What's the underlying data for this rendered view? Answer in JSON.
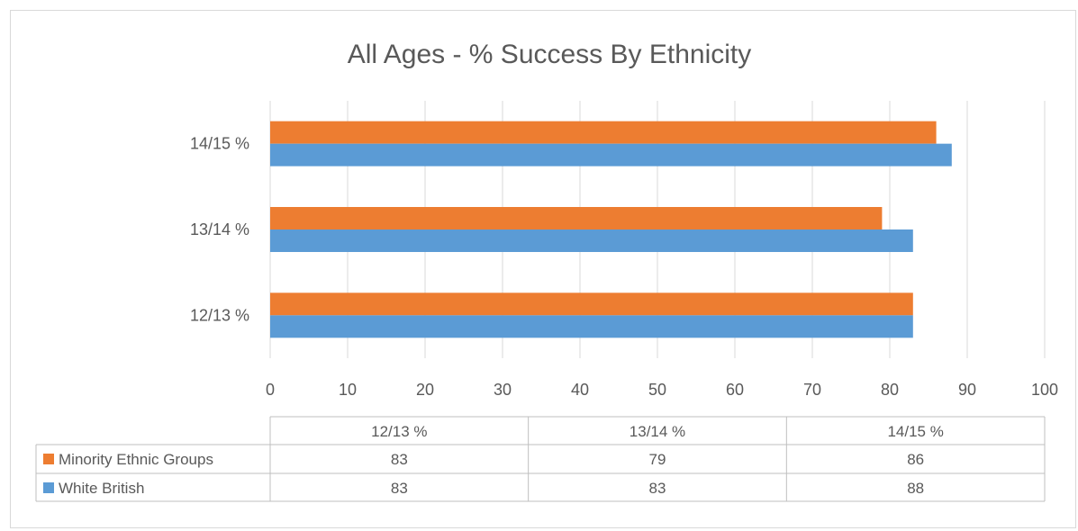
{
  "chart_data": {
    "type": "bar",
    "orientation": "horizontal",
    "title": "All Ages - % Success By Ethnicity",
    "categories": [
      "12/13 %",
      "13/14 %",
      "14/15 %"
    ],
    "series": [
      {
        "name": "Minority Ethnic Groups",
        "color": "#ed7d31",
        "values": [
          83,
          79,
          86
        ]
      },
      {
        "name": "White British",
        "color": "#5b9bd5",
        "values": [
          83,
          83,
          88
        ]
      }
    ],
    "xticks": [
      "0",
      "10",
      "20",
      "30",
      "40",
      "50",
      "60",
      "70",
      "80",
      "90",
      "100"
    ],
    "xlim": [
      0,
      100
    ],
    "grid": true,
    "legend": "data-table",
    "data_table": true
  }
}
